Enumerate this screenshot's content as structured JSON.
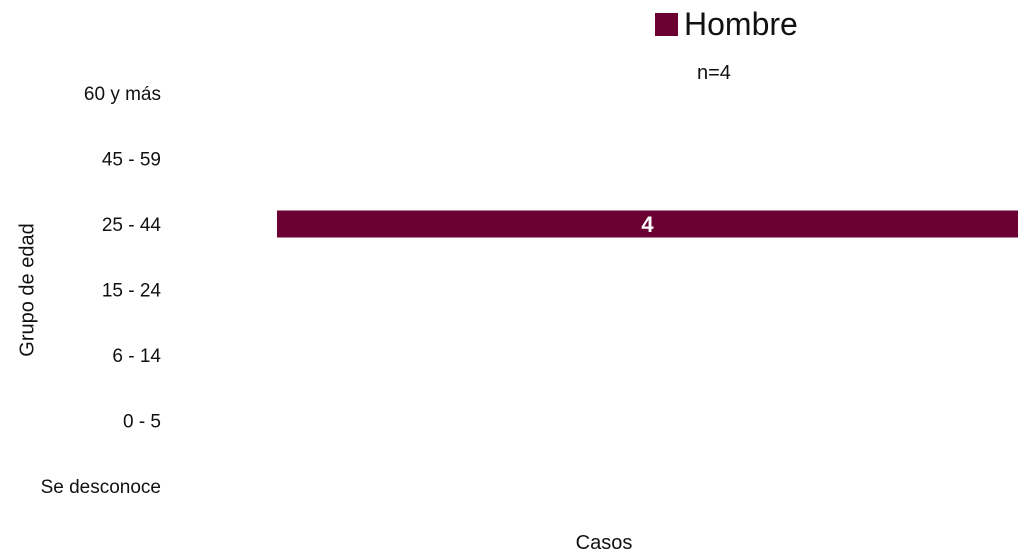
{
  "chart_data": {
    "type": "bar",
    "orientation": "horizontal",
    "categories": [
      "60 y más",
      "45 - 59",
      "25 - 44",
      "15 - 24",
      "6 - 14",
      "0 - 5",
      "Se desconoce"
    ],
    "series": [
      {
        "name": "Hombre",
        "values": [
          0,
          0,
          4,
          0,
          0,
          0,
          0
        ],
        "color": "#6b0033"
      }
    ],
    "data_labels": [
      "",
      "",
      "4",
      "",
      "",
      "",
      ""
    ],
    "subtitle": "n=4",
    "xlabel": "Casos",
    "ylabel": "Grupo de edad",
    "xlim": [
      0,
      4
    ],
    "grid": false,
    "legend_position": "top-right"
  }
}
